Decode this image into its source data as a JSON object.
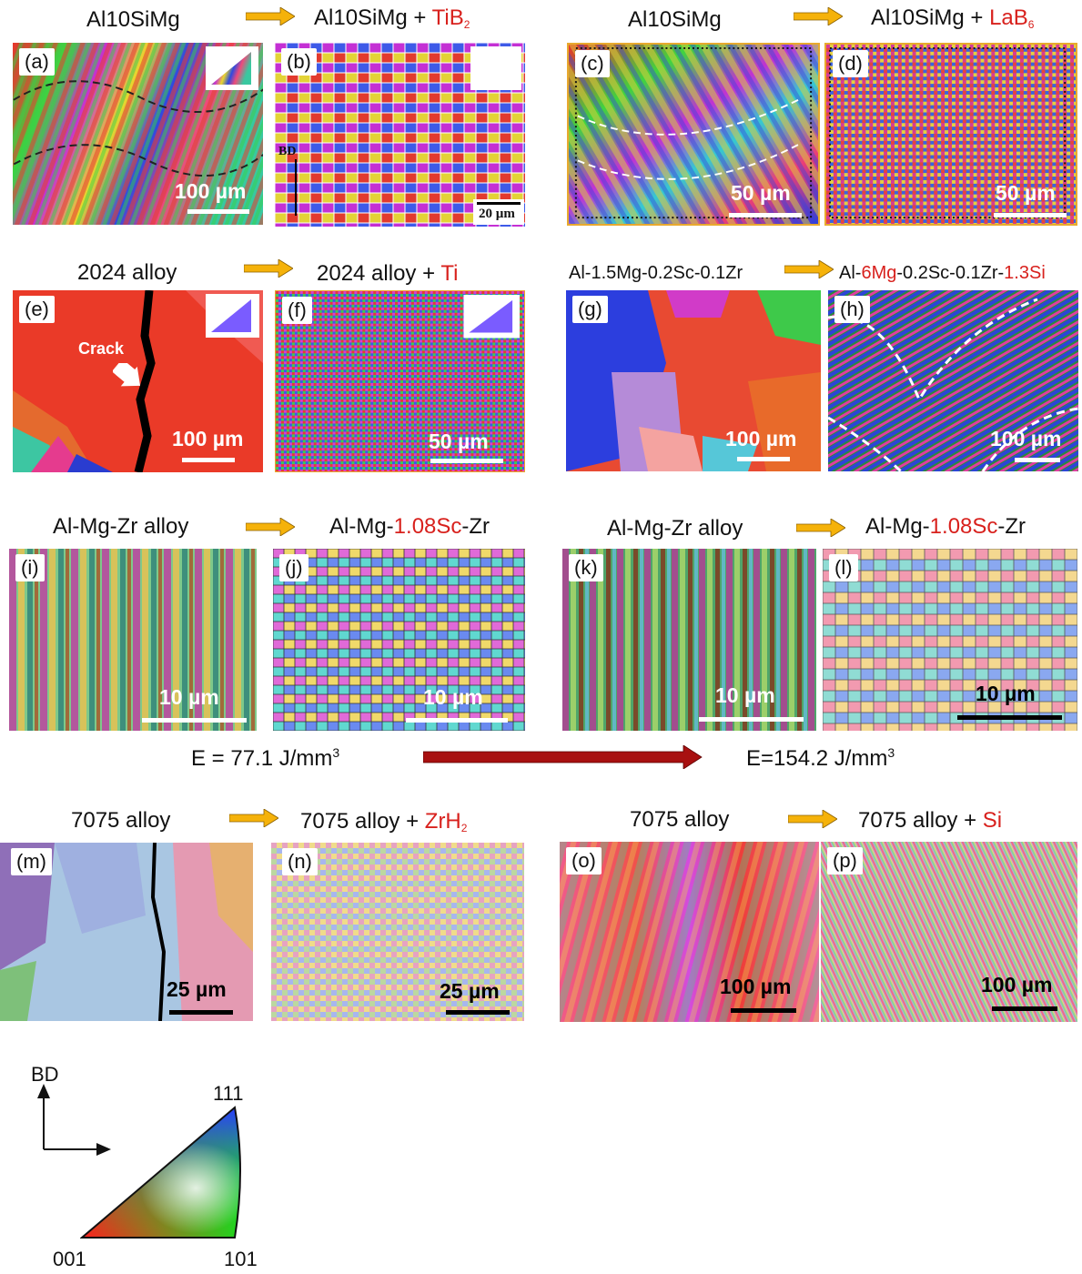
{
  "colors": {
    "accent_red": "#d8211d",
    "arrow_orange": "#f5b20a",
    "arrow_dark_red": "#a81010"
  },
  "row1": {
    "a_title": "Al10SiMg",
    "b_title_base": "Al10SiMg + ",
    "b_title_add": "TiB",
    "b_title_sub": "2",
    "c_title": "Al10SiMg",
    "d_title_base": "Al10SiMg + ",
    "d_title_add": "LaB",
    "d_title_sub": "6"
  },
  "row2": {
    "e_title": "2024 alloy",
    "f_title_base": "2024 alloy + ",
    "f_title_add": "Ti",
    "g_title": "Al-1.5Mg-0.2Sc-0.1Zr",
    "h_pre": "Al-",
    "h_red1": "6Mg",
    "h_mid": "-0.2Sc-0.1Zr-",
    "h_red2": "1.3Si"
  },
  "row3": {
    "i_title": "Al-Mg-Zr alloy",
    "j_pre": "Al-Mg-",
    "j_red": "1.08Sc",
    "j_post": "-Zr",
    "k_title": "Al-Mg-Zr alloy",
    "l_pre": "Al-Mg-",
    "l_red": "1.08Sc",
    "l_post": "-Zr",
    "energy_left": "E = 77.1 J/mm",
    "energy_right": "E=154.2 J/mm",
    "energy_exp": "3"
  },
  "row4": {
    "m_title": "7075 alloy",
    "n_title_base": "7075 alloy + ",
    "n_title_add": "ZrH",
    "n_title_sub": "2",
    "o_title": "7075 alloy",
    "p_title_base": "7075 alloy + ",
    "p_title_add": "Si"
  },
  "panels": {
    "a": {
      "label": "(a)",
      "scale": "100 µm"
    },
    "b": {
      "label": "(b)",
      "scale": "20 µm",
      "bd": "BD"
    },
    "c": {
      "label": "(c)",
      "scale": "50 µm"
    },
    "d": {
      "label": "(d)",
      "scale": "50 µm"
    },
    "e": {
      "label": "(e)",
      "scale": "100 µm",
      "crack": "Crack"
    },
    "f": {
      "label": "(f)",
      "scale": "50 µm"
    },
    "g": {
      "label": "(g)",
      "scale": "100 µm"
    },
    "h": {
      "label": "(h)",
      "scale": "100 µm"
    },
    "i": {
      "label": "(i)",
      "scale": "10 µm"
    },
    "j": {
      "label": "(j)",
      "scale": "10 µm"
    },
    "k": {
      "label": "(k)",
      "scale": "10 µm"
    },
    "l": {
      "label": "(l)",
      "scale": "10 µm"
    },
    "m": {
      "label": "(m)",
      "scale": "25 µm"
    },
    "n": {
      "label": "(n)",
      "scale": "25 µm"
    },
    "o": {
      "label": "(o)",
      "scale": "100 µm"
    },
    "p": {
      "label": "(p)",
      "scale": "100 µm"
    }
  },
  "legend": {
    "bd": "BD",
    "corner_111": "111",
    "corner_001": "001",
    "corner_101": "101"
  }
}
